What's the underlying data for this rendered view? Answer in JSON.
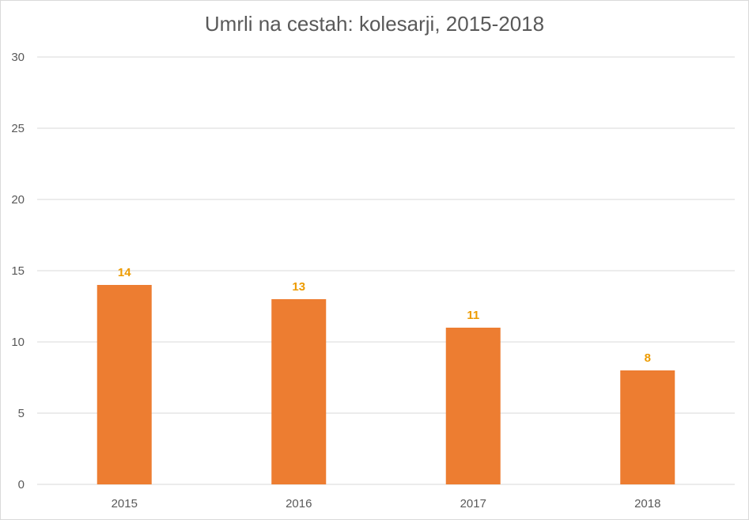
{
  "chart_data": {
    "type": "bar",
    "title": "Umrli na cestah: kolesarji, 2015-2018",
    "categories": [
      "2015",
      "2016",
      "2017",
      "2018"
    ],
    "values": [
      14,
      13,
      11,
      8
    ],
    "data_labels": [
      "14",
      "13",
      "11",
      "8"
    ],
    "ylim": [
      0,
      30
    ],
    "yticks": [
      0,
      5,
      10,
      15,
      20,
      25,
      30
    ],
    "grid": true,
    "legend": "none",
    "colors": {
      "bar": "#ed7d31",
      "data_label": "#ed9b00",
      "gridline": "#d9d9d9",
      "axis_text": "#595959"
    }
  }
}
